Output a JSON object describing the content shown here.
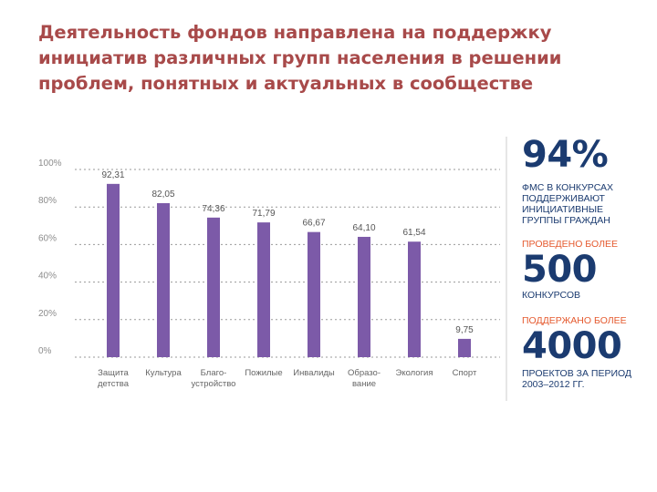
{
  "slide": {
    "title_lines": [
      "Деятельность фондов направлена на поддержку",
      "инициатив различных групп населения в решении",
      "проблем, понятных и актуальных в сообществе"
    ]
  },
  "chart_data": {
    "type": "bar",
    "categories": [
      [
        "Защита",
        "детства"
      ],
      [
        "Культура"
      ],
      [
        "Благо-",
        "устройство"
      ],
      [
        "Пожилые"
      ],
      [
        "Инвалиды"
      ],
      [
        "Образо-",
        "вание"
      ],
      [
        "Экология"
      ],
      [
        "Спорт"
      ]
    ],
    "values": [
      92.31,
      82.05,
      74.36,
      71.79,
      66.67,
      64.1,
      61.54,
      9.75
    ],
    "value_labels": [
      "92,31",
      "82,05",
      "74,36",
      "71,79",
      "66,67",
      "64,10",
      "61,54",
      "9,75"
    ],
    "y_ticks": [
      "0%",
      "20%",
      "40%",
      "60%",
      "80%",
      "100%"
    ],
    "ylim": [
      0,
      100
    ],
    "grid": true,
    "bar_color": "#7c5aa8"
  },
  "stats": {
    "stat1_value": "94%",
    "stat1_text_lines": [
      "ФМС в конкурсах",
      "поддерживают",
      "инициативные",
      "группы граждан"
    ],
    "stat2_prefix": "проведено более",
    "stat2_value": "500",
    "stat2_suffix": "конкурсов",
    "stat3_prefix": "поддержано более",
    "stat3_value": "4000",
    "stat3_text_lines": [
      "проектов за период",
      "2003–2012 гг."
    ],
    "primary_color": "#1b3b70",
    "accent_color": "#e55a2f"
  }
}
